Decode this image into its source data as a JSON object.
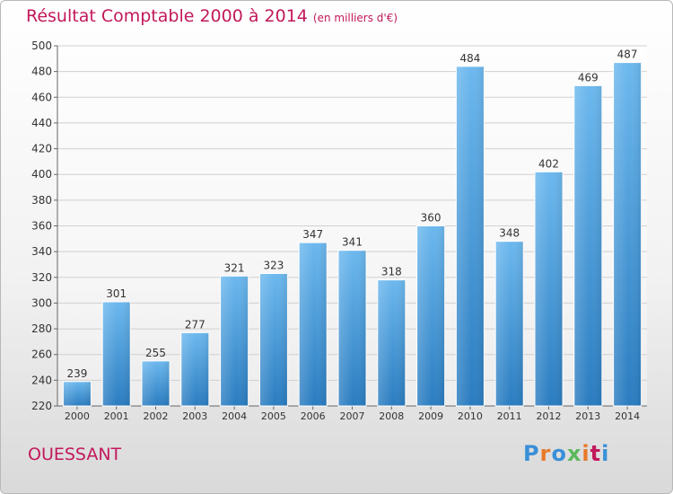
{
  "header": {
    "title": "Résultat Comptable 2000 à 2014",
    "subtitle": "(en milliers d'€)"
  },
  "footer": {
    "commune": "OUESSANT",
    "logo": "Proxiti"
  },
  "colors": {
    "title": "#c2185b",
    "bar_top": "#6cb8ee",
    "bar_bottom": "#2a7cc0",
    "logo_letters": [
      "#3a8fd8",
      "#e8792a",
      "#3a8fd8",
      "#5cb85c",
      "#e8792a",
      "#c2185b",
      "#3a8fd8"
    ]
  },
  "chart_data": {
    "type": "bar",
    "categories": [
      "2000",
      "2001",
      "2002",
      "2003",
      "2004",
      "2005",
      "2006",
      "2007",
      "2008",
      "2009",
      "2010",
      "2011",
      "2012",
      "2013",
      "2014"
    ],
    "values": [
      239,
      301,
      255,
      277,
      321,
      323,
      347,
      341,
      318,
      360,
      484,
      348,
      402,
      469,
      487
    ],
    "title": "Résultat Comptable 2000 à 2014",
    "subtitle": "(en milliers d'€)",
    "xlabel": "",
    "ylabel": "",
    "ylim": [
      220,
      500
    ],
    "yticks": [
      220,
      240,
      260,
      280,
      300,
      320,
      340,
      360,
      380,
      400,
      420,
      440,
      460,
      480,
      500
    ],
    "grid": true,
    "data_labels": true
  }
}
